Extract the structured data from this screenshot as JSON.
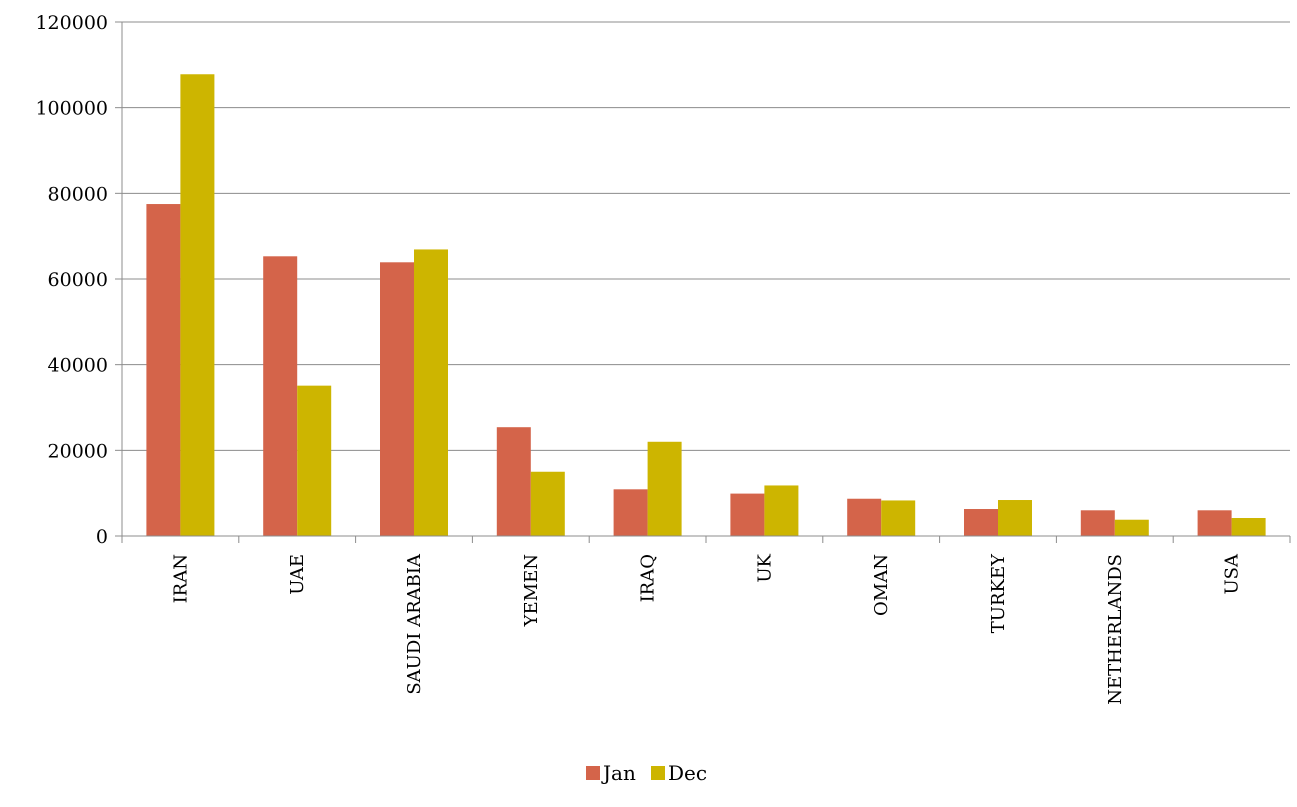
{
  "chart_data": {
    "type": "bar",
    "categories": [
      "IRAN",
      "UAE",
      "SAUDI ARABIA",
      "YEMEN",
      "IRAQ",
      "UK",
      "OMAN",
      "TURKEY",
      "NETHERLANDS",
      "USA"
    ],
    "series": [
      {
        "name": "Jan",
        "color": "#D4644A",
        "values": [
          77500,
          65300,
          63900,
          25400,
          10900,
          9900,
          8700,
          6300,
          6000,
          6000
        ]
      },
      {
        "name": "Dec",
        "color": "#CDB500",
        "values": [
          107800,
          35100,
          66900,
          15000,
          22000,
          11800,
          8300,
          8400,
          3800,
          4200
        ]
      }
    ],
    "y_ticks": [
      "0",
      "20000",
      "40000",
      "60000",
      "80000",
      "100000",
      "120000"
    ],
    "ylim": [
      0,
      120000
    ],
    "grid": true,
    "legend_position": "bottom-center",
    "title": "",
    "xlabel": "",
    "ylabel": ""
  }
}
